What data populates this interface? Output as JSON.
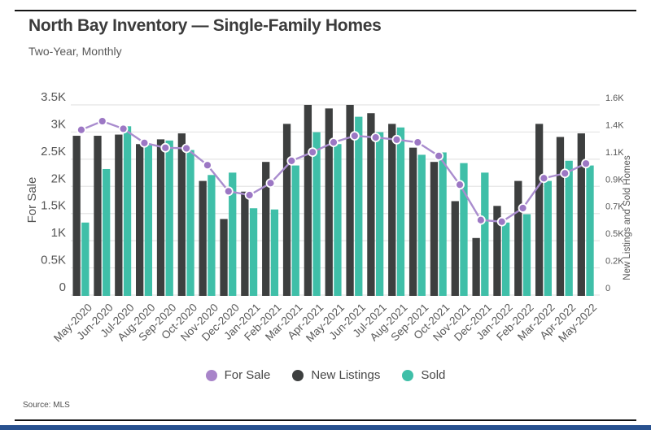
{
  "page": {
    "title": "North Bay Inventory — Single-Family Homes",
    "subtitle": "Two-Year, Monthly",
    "source": "Source: MLS"
  },
  "legend": [
    {
      "label": "For Sale",
      "color": "#a884c9"
    },
    {
      "label": "New Listings",
      "color": "#3d3f3f"
    },
    {
      "label": "Sold",
      "color": "#3fbfa8"
    }
  ],
  "accent_bar_color": "#28518f",
  "chart_data": {
    "type": "bar",
    "title": "North Bay Inventory — Single-Family Homes",
    "subtitle": "Two-Year, Monthly",
    "grid": true,
    "legend_position": "bottom",
    "categories": [
      "May-2020",
      "Jun-2020",
      "Jul-2020",
      "Aug-2020",
      "Sep-2020",
      "Oct-2020",
      "Nov-2020",
      "Dec-2020",
      "Jan-2021",
      "Feb-2021",
      "Mar-2021",
      "Apr-2021",
      "May-2021",
      "Jun-2021",
      "Jul-2021",
      "Aug-2021",
      "Sep-2021",
      "Oct-2021",
      "Nov-2021",
      "Dec-2021",
      "Jan-2022",
      "Feb-2022",
      "Mar-2022",
      "Apr-2022",
      "May-2022"
    ],
    "series": [
      {
        "name": "For Sale",
        "type": "line",
        "axis": "left",
        "color": "#a98cce",
        "point_color": "#9c77c4",
        "values": [
          3040,
          3200,
          3060,
          2800,
          2710,
          2700,
          2390,
          1910,
          1840,
          2060,
          2470,
          2630,
          2810,
          2930,
          2900,
          2860,
          2810,
          2560,
          2030,
          1380,
          1350,
          1600,
          2150,
          2240,
          2420
        ]
      },
      {
        "name": "New Listings",
        "type": "bar",
        "axis": "right",
        "color": "#3d3f3f",
        "values": [
          1340,
          1340,
          1350,
          1270,
          1310,
          1360,
          960,
          640,
          870,
          1120,
          1440,
          1600,
          1570,
          1600,
          1530,
          1440,
          1240,
          1120,
          790,
          480,
          750,
          960,
          1440,
          1330,
          1360
        ]
      },
      {
        "name": "Sold",
        "type": "bar",
        "axis": "right",
        "color": "#3fbfa8",
        "values": [
          610,
          1060,
          1420,
          1260,
          1300,
          1220,
          1010,
          1030,
          730,
          720,
          1090,
          1370,
          1270,
          1500,
          1370,
          1410,
          1180,
          1200,
          1110,
          1030,
          610,
          680,
          960,
          1130,
          1090
        ]
      }
    ],
    "left_axis": {
      "label": "For Sale",
      "min": 0,
      "max": 3500,
      "ticks": [
        "0",
        "0.5K",
        "1K",
        "1.5K",
        "2K",
        "2.5K",
        "3K",
        "3.5K"
      ]
    },
    "right_axis": {
      "label": "New Listings and Sold Homes",
      "min": 0,
      "max": 1600,
      "ticks": [
        "0",
        "0.2K",
        "0.5K",
        "0.7K",
        "0.9K",
        "1.1K",
        "1.4K",
        "1.6K"
      ]
    }
  }
}
